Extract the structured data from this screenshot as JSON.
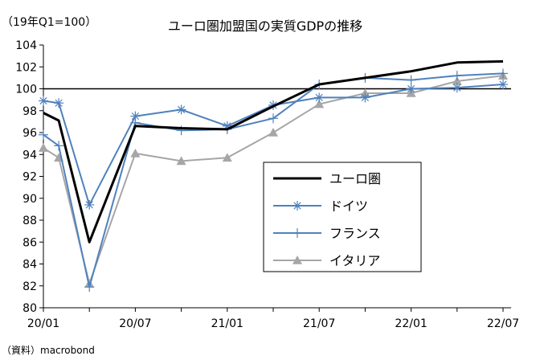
{
  "chart_data": {
    "type": "line",
    "title": "ユーロ圏加盟国の実質GDPの推移",
    "unit_label": "（19年Q1=100）",
    "source": "（資料）macrobond",
    "xlabel": "",
    "ylabel": "",
    "ylim": [
      80,
      104
    ],
    "yticks": [
      80,
      82,
      84,
      86,
      88,
      90,
      92,
      94,
      96,
      98,
      100,
      102,
      104
    ],
    "xlim": [
      "2020-01",
      "2022-07"
    ],
    "xticks": [
      "20/01",
      "20/07",
      "21/01",
      "21/07",
      "22/01",
      "22/07"
    ],
    "reference_line": 100,
    "grid": "horizontal",
    "legend_position": "inside-right",
    "series": [
      {
        "name": "ユーロ圏",
        "color": "#000000",
        "marker": "none",
        "points": [
          {
            "x": "2020-01",
            "y": 97.8
          },
          {
            "x": "2020-02",
            "y": 97.1
          },
          {
            "x": "2020-04",
            "y": 86.0
          },
          {
            "x": "2020-07",
            "y": 96.6
          },
          {
            "x": "2020-10",
            "y": 96.4
          },
          {
            "x": "2021-01",
            "y": 96.3
          },
          {
            "x": "2021-04",
            "y": 98.4
          },
          {
            "x": "2021-07",
            "y": 100.4
          },
          {
            "x": "2021-10",
            "y": 101.0
          },
          {
            "x": "2022-01",
            "y": 101.6
          },
          {
            "x": "2022-04",
            "y": 102.4
          },
          {
            "x": "2022-07",
            "y": 102.5
          }
        ]
      },
      {
        "name": "ドイツ",
        "color": "#4F81BD",
        "marker": "asterisk",
        "points": [
          {
            "x": "2020-01",
            "y": 98.9
          },
          {
            "x": "2020-02",
            "y": 98.7
          },
          {
            "x": "2020-04",
            "y": 89.4
          },
          {
            "x": "2020-07",
            "y": 97.5
          },
          {
            "x": "2020-10",
            "y": 98.1
          },
          {
            "x": "2021-01",
            "y": 96.6
          },
          {
            "x": "2021-04",
            "y": 98.5
          },
          {
            "x": "2021-07",
            "y": 99.2
          },
          {
            "x": "2021-10",
            "y": 99.2
          },
          {
            "x": "2022-01",
            "y": 100.0
          },
          {
            "x": "2022-04",
            "y": 100.1
          },
          {
            "x": "2022-07",
            "y": 100.4
          }
        ]
      },
      {
        "name": "フランス",
        "color": "#4F81BD",
        "marker": "plus",
        "points": [
          {
            "x": "2020-01",
            "y": 95.8
          },
          {
            "x": "2020-02",
            "y": 94.8
          },
          {
            "x": "2020-04",
            "y": 81.9
          },
          {
            "x": "2020-07",
            "y": 96.9
          },
          {
            "x": "2020-10",
            "y": 96.2
          },
          {
            "x": "2021-01",
            "y": 96.3
          },
          {
            "x": "2021-04",
            "y": 97.3
          },
          {
            "x": "2021-07",
            "y": 100.4
          },
          {
            "x": "2021-10",
            "y": 101.0
          },
          {
            "x": "2022-01",
            "y": 100.8
          },
          {
            "x": "2022-04",
            "y": 101.2
          },
          {
            "x": "2022-07",
            "y": 101.4
          }
        ]
      },
      {
        "name": "イタリア",
        "color": "#A6A6A6",
        "marker": "triangle",
        "points": [
          {
            "x": "2020-01",
            "y": 94.6
          },
          {
            "x": "2020-02",
            "y": 93.7
          },
          {
            "x": "2020-04",
            "y": 82.2
          },
          {
            "x": "2020-07",
            "y": 94.1
          },
          {
            "x": "2020-10",
            "y": 93.4
          },
          {
            "x": "2021-01",
            "y": 93.7
          },
          {
            "x": "2021-04",
            "y": 96.0
          },
          {
            "x": "2021-07",
            "y": 98.6
          },
          {
            "x": "2021-10",
            "y": 99.6
          },
          {
            "x": "2022-01",
            "y": 99.6
          },
          {
            "x": "2022-04",
            "y": 100.7
          },
          {
            "x": "2022-07",
            "y": 101.2
          }
        ]
      }
    ]
  }
}
